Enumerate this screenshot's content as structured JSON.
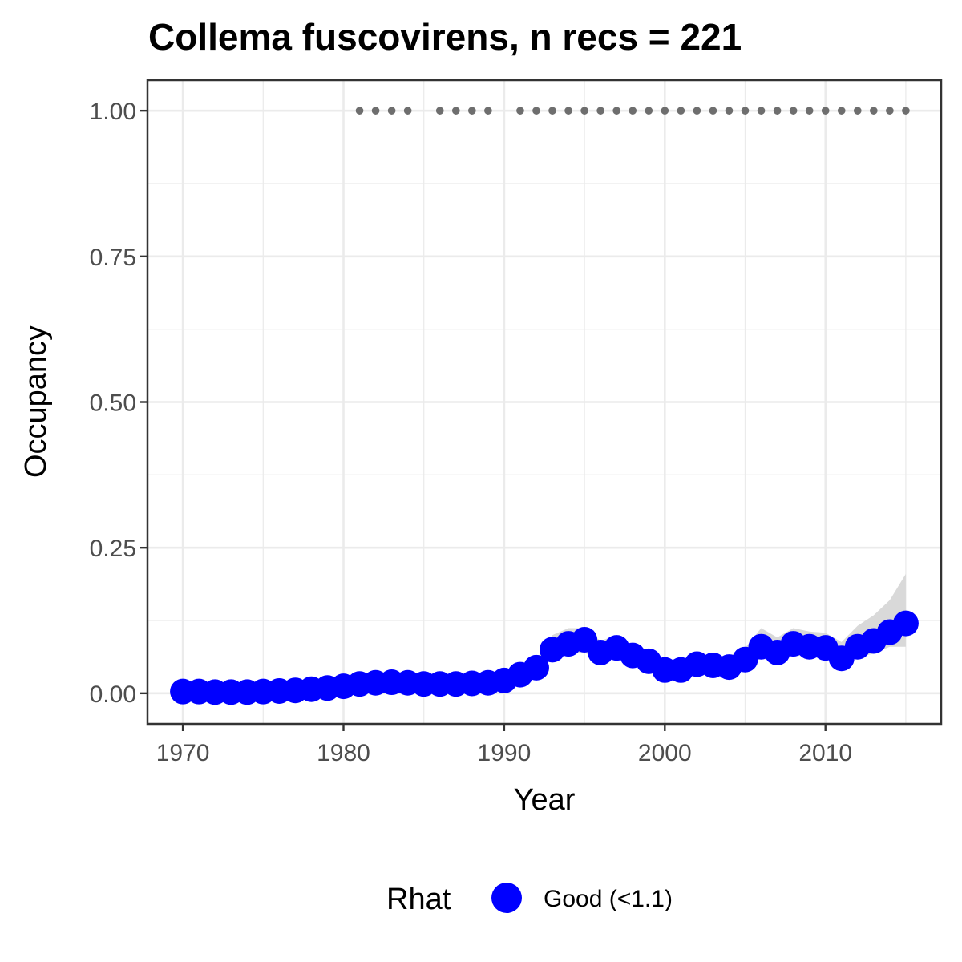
{
  "chart_data": {
    "type": "line",
    "title": "Collema fuscovirens, n recs = 221",
    "xlabel": "Year",
    "ylabel": "Occupancy",
    "xlim": [
      1967.8,
      2017.2
    ],
    "ylim": [
      -0.0525,
      1.0525
    ],
    "x_ticks": [
      1970,
      1980,
      1990,
      2000,
      2010
    ],
    "x_tick_labels": [
      "1970",
      "1980",
      "1990",
      "2000",
      "2010"
    ],
    "y_ticks": [
      0,
      0.25,
      0.5,
      0.75,
      1
    ],
    "y_tick_labels": [
      "0.00",
      "0.25",
      "0.50",
      "0.75",
      "1.00"
    ],
    "grid": true,
    "legend_position": "bottom",
    "colors": {
      "points": "#0000ff",
      "ribbon": "#d9d9d9",
      "record_dots": "#6e6e6e",
      "grid": "#ebebeb",
      "panel_border": "#333333"
    },
    "legend": {
      "title": "Rhat",
      "label": "Good (<1.1)"
    },
    "series": [
      {
        "name": "Good (<1.1)",
        "x": [
          1970,
          1971,
          1972,
          1973,
          1974,
          1975,
          1976,
          1977,
          1978,
          1979,
          1980,
          1981,
          1982,
          1983,
          1984,
          1985,
          1986,
          1987,
          1988,
          1989,
          1990,
          1991,
          1992,
          1993,
          1994,
          1995,
          1996,
          1997,
          1998,
          1999,
          2000,
          2001,
          2002,
          2003,
          2004,
          2005,
          2006,
          2007,
          2008,
          2009,
          2010,
          2011,
          2012,
          2013,
          2014,
          2015
        ],
        "y": [
          0.003,
          0.003,
          0.002,
          0.002,
          0.002,
          0.003,
          0.004,
          0.005,
          0.007,
          0.009,
          0.012,
          0.016,
          0.018,
          0.019,
          0.018,
          0.016,
          0.016,
          0.016,
          0.017,
          0.018,
          0.022,
          0.032,
          0.044,
          0.075,
          0.085,
          0.092,
          0.07,
          0.078,
          0.065,
          0.055,
          0.04,
          0.04,
          0.05,
          0.048,
          0.045,
          0.058,
          0.08,
          0.07,
          0.085,
          0.08,
          0.078,
          0.06,
          0.08,
          0.09,
          0.105,
          0.12
        ],
        "lower": [
          0.001,
          0.001,
          0.001,
          0.001,
          0.001,
          0.001,
          0.002,
          0.003,
          0.004,
          0.006,
          0.008,
          0.011,
          0.013,
          0.014,
          0.013,
          0.012,
          0.012,
          0.012,
          0.012,
          0.013,
          0.016,
          0.024,
          0.034,
          0.06,
          0.068,
          0.07,
          0.055,
          0.06,
          0.05,
          0.04,
          0.028,
          0.03,
          0.038,
          0.036,
          0.034,
          0.044,
          0.06,
          0.054,
          0.066,
          0.062,
          0.06,
          0.046,
          0.062,
          0.068,
          0.08,
          0.08
        ],
        "upper": [
          0.006,
          0.006,
          0.005,
          0.005,
          0.005,
          0.006,
          0.007,
          0.008,
          0.011,
          0.013,
          0.017,
          0.022,
          0.024,
          0.025,
          0.024,
          0.022,
          0.022,
          0.022,
          0.023,
          0.024,
          0.03,
          0.042,
          0.058,
          0.1,
          0.112,
          0.112,
          0.09,
          0.1,
          0.082,
          0.07,
          0.058,
          0.058,
          0.066,
          0.064,
          0.064,
          0.078,
          0.112,
          0.096,
          0.112,
          0.106,
          0.104,
          0.088,
          0.116,
          0.134,
          0.16,
          0.205
        ]
      }
    ],
    "record_years": [
      1981,
      1982,
      1983,
      1984,
      1986,
      1987,
      1988,
      1989,
      1991,
      1992,
      1993,
      1994,
      1995,
      1996,
      1997,
      1998,
      1999,
      2000,
      2001,
      2002,
      2003,
      2004,
      2005,
      2006,
      2007,
      2008,
      2009,
      2010,
      2011,
      2012,
      2013,
      2014,
      2015
    ],
    "record_value": 1.0
  }
}
